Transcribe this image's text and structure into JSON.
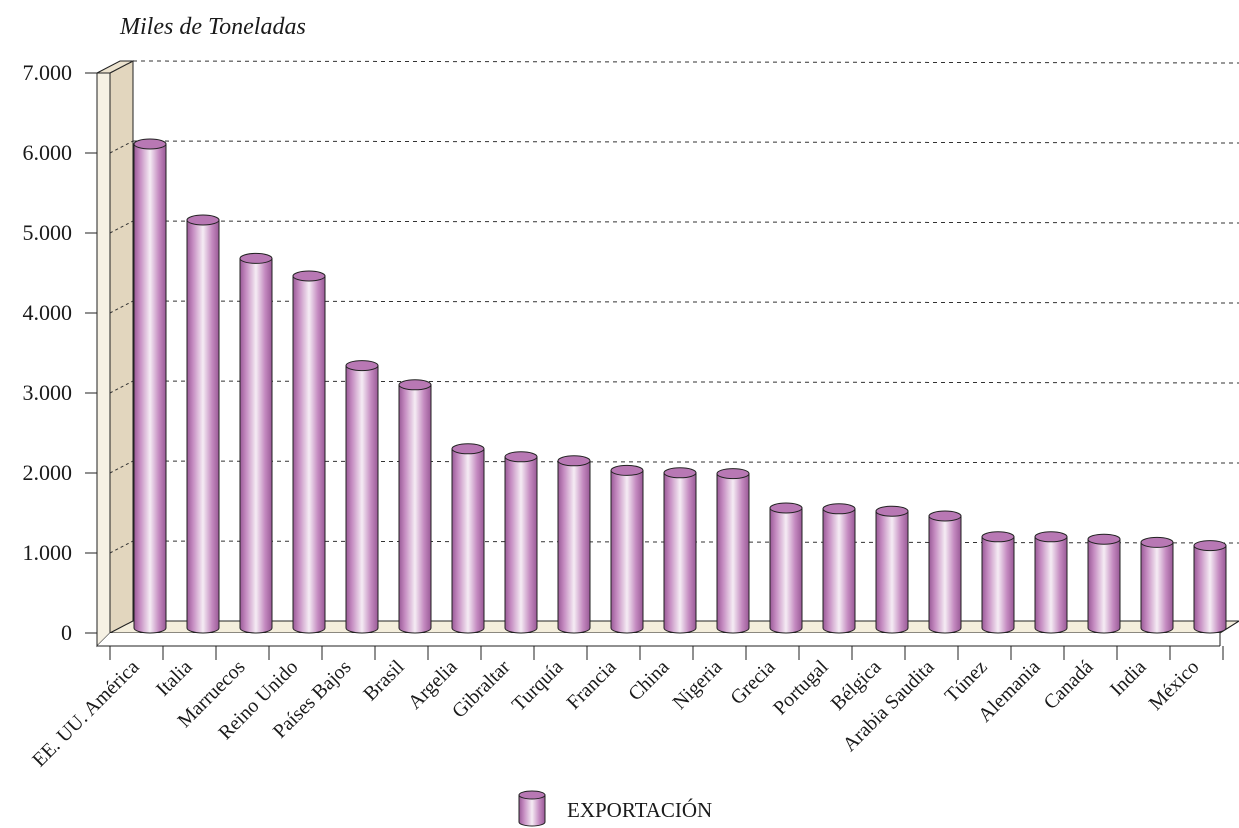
{
  "chart_data": {
    "type": "bar",
    "title": "",
    "ylabel": "Miles de Toneladas",
    "xlabel": "",
    "ylim": [
      0,
      7000
    ],
    "yticks": [
      0,
      1000,
      2000,
      3000,
      4000,
      5000,
      6000,
      7000
    ],
    "ytick_labels": [
      "0",
      "1.000",
      "2.000",
      "3.000",
      "4.000",
      "5.000",
      "6.000",
      "7.000"
    ],
    "grid": true,
    "style": "3d-cylinder",
    "legend_position": "bottom",
    "categories": [
      "EE. UU. América",
      "Italia",
      "Marruecos",
      "Reino Unido",
      "Países Bajos",
      "Brasil",
      "Argelia",
      "Gibraltar",
      "Turquía",
      "Francia",
      "China",
      "Nigeria",
      "Grecia",
      "Portugal",
      "Bélgica",
      "Arabia Saudita",
      "Túnez",
      "Alemania",
      "Canadá",
      "India",
      "México"
    ],
    "series": [
      {
        "name": "EXPORTACIÓN",
        "color": "#b878b4",
        "values": [
          6050,
          5100,
          4620,
          4400,
          3280,
          3040,
          2240,
          2140,
          2090,
          1970,
          1940,
          1930,
          1500,
          1490,
          1460,
          1400,
          1140,
          1140,
          1110,
          1070,
          1030
        ]
      }
    ]
  },
  "colors": {
    "bar_dark": "#9a5a97",
    "bar_light": "#f5ecf4",
    "bar_top": "#b878b4",
    "wall": "#e2d6be",
    "floor": "#f4eedc",
    "grid": "#333333"
  }
}
